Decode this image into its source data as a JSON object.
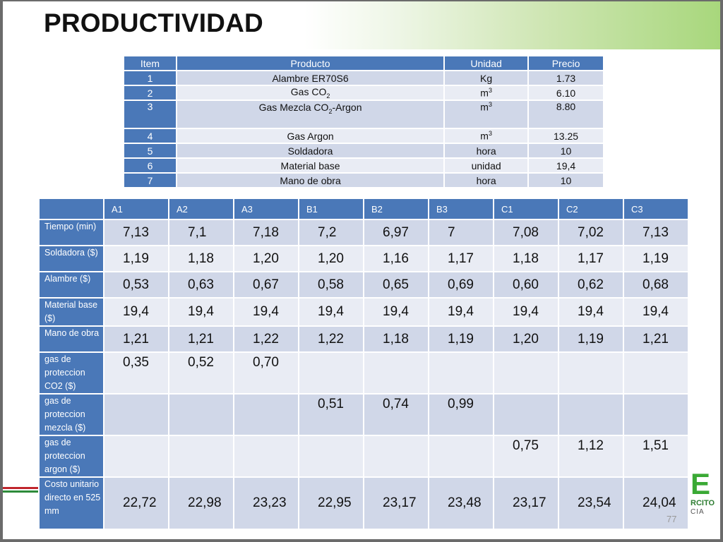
{
  "title": "PRODUCTIVIDAD",
  "page_number": "77",
  "logo": {
    "letter": "E",
    "line1": "RCITO",
    "line2": "CIA"
  },
  "table1": {
    "headers": [
      "Item",
      "Producto",
      "Unidad",
      "Precio"
    ],
    "rows": [
      {
        "item": "1",
        "producto": "Alambre ER70S6",
        "unidad": "Kg",
        "precio": "1.73"
      },
      {
        "item": "2",
        "producto_pre": "Gas CO",
        "producto_sub": "2",
        "producto_post": "",
        "unidad_pre": "m",
        "unidad_sup": "3",
        "precio": "6.10"
      },
      {
        "item": "3",
        "producto_pre": "Gas Mezcla CO",
        "producto_sub": "2",
        "producto_post": "-Argon",
        "unidad_pre": "m",
        "unidad_sup": "3",
        "precio": "8.80"
      },
      {
        "item": "4",
        "producto": "Gas Argon",
        "unidad_pre": "m",
        "unidad_sup": "3",
        "precio": "13.25"
      },
      {
        "item": "5",
        "producto": "Soldadora",
        "unidad": "hora",
        "precio": "10"
      },
      {
        "item": "6",
        "producto": "Material base",
        "unidad": "unidad",
        "precio": "19,4"
      },
      {
        "item": "7",
        "producto": "Mano de obra",
        "unidad": "hora",
        "precio": "10"
      }
    ]
  },
  "table2": {
    "headers": [
      "A1",
      "A2",
      "A3",
      "B1",
      "B2",
      "B3",
      "C1",
      "C2",
      "C3"
    ],
    "rows": [
      {
        "label": "Tiempo (min)",
        "values": [
          "7,13",
          "7,1",
          "7,18",
          "7,2",
          "6,97",
          "7",
          "7,08",
          "7,02",
          "7,13"
        ]
      },
      {
        "label": "Soldadora ($)",
        "values": [
          "1,19",
          "1,18",
          "1,20",
          "1,20",
          "1,16",
          "1,17",
          "1,18",
          "1,17",
          "1,19"
        ]
      },
      {
        "label": "Alambre ($)",
        "values": [
          "0,53",
          "0,63",
          "0,67",
          "0,58",
          "0,65",
          "0,69",
          "0,60",
          "0,62",
          "0,68"
        ]
      },
      {
        "label": "Material base ($)",
        "values": [
          "19,4",
          "19,4",
          "19,4",
          "19,4",
          "19,4",
          "19,4",
          "19,4",
          "19,4",
          "19,4"
        ]
      },
      {
        "label": "Mano de obra",
        "values": [
          "1,21",
          "1,21",
          "1,22",
          "1,22",
          "1,18",
          "1,19",
          "1,20",
          "1,19",
          "1,21"
        ]
      },
      {
        "label": "gas de proteccion CO2  ($)",
        "values": [
          "0,35",
          "0,52",
          "0,70",
          "",
          "",
          "",
          "",
          "",
          ""
        ]
      },
      {
        "label": "gas de proteccion mezcla ($)",
        "values": [
          "",
          "",
          "",
          "0,51",
          "0,74",
          "0,99",
          "",
          "",
          ""
        ]
      },
      {
        "label": "gas de proteccion argon  ($)",
        "values": [
          "",
          "",
          "",
          "",
          "",
          "",
          "0,75",
          "1,12",
          "1,51"
        ]
      },
      {
        "label": "Costo unitario directo en 525 mm",
        "values": [
          "22,72",
          "22,98",
          "23,23",
          "22,95",
          "23,17",
          "23,48",
          "23,17",
          "23,54",
          "24,04"
        ]
      }
    ]
  },
  "colors": {
    "header_blue": "#4a78b8",
    "row_dark": "#d0d7e8",
    "row_light": "#e9ecf4",
    "title_band_green": "#a8d77c"
  }
}
